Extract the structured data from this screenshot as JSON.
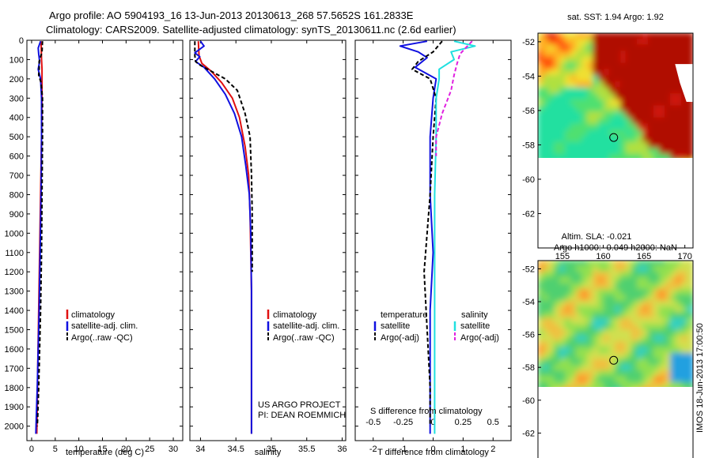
{
  "header": {
    "line1": "Argo profile: AO 5904193_16 13-Jun-2013 20130613_268 57.5652S 161.2833E",
    "line2": "Climatology: CARS2009. Satellite-adjusted climatology: synTS_20130611.nc (2.6d earlier)"
  },
  "side_label": "IMOS 18-Jun-2013 17:00:50",
  "colors": {
    "climatology": "#e01010",
    "satellite": "#1010e0",
    "argo": "#000000",
    "sat_salinity": "#20e0e0",
    "argo_salinity": "#e020e0"
  },
  "chart_data": [
    {
      "id": "temperature",
      "type": "line",
      "xlabel": "temperature (deg C)",
      "xlim": [
        -1,
        32
      ],
      "xticks": [
        0,
        5,
        10,
        15,
        20,
        25,
        30
      ],
      "xtick_labels": [
        "0",
        "5",
        "10",
        "15",
        "20",
        "25",
        "30"
      ],
      "ylim": [
        0,
        2075
      ],
      "yticks": [
        0,
        100,
        200,
        300,
        400,
        500,
        600,
        700,
        800,
        900,
        1000,
        1100,
        1200,
        1300,
        1400,
        1500,
        1600,
        1700,
        1800,
        1900,
        2000
      ],
      "legend": [
        "climatology",
        "satellite-adj. clim.",
        "Argo(..raw -QC)"
      ],
      "series": [
        {
          "name": "climatology",
          "color": "#e01010",
          "dash": "",
          "x": [
            2.0,
            2.1,
            2.2,
            2.2,
            2.1,
            1.9,
            1.7,
            1.5,
            1.3,
            1.2,
            1.1
          ],
          "y": [
            5,
            100,
            150,
            300,
            500,
            800,
            1100,
            1400,
            1700,
            1900,
            2040
          ]
        },
        {
          "name": "satellite-adj. clim.",
          "color": "#1010e0",
          "dash": "",
          "x": [
            1.9,
            1.4,
            1.5,
            1.7,
            1.4,
            1.9,
            2.1,
            2.1,
            2.0,
            1.8,
            1.6,
            1.4,
            1.2,
            1.0,
            0.9
          ],
          "y": [
            5,
            40,
            70,
            110,
            150,
            200,
            300,
            500,
            800,
            1100,
            1400,
            1600,
            1800,
            1950,
            2040
          ]
        },
        {
          "name": "Argo(..raw -QC)",
          "color": "#000000",
          "dash": "5,3",
          "x": [
            2.3,
            2.2,
            1.6,
            1.6,
            1.5,
            2.0,
            2.3,
            2.3,
            2.2,
            2.1,
            1.9,
            1.7,
            1.5,
            1.3,
            1.2
          ],
          "y": [
            5,
            60,
            110,
            150,
            180,
            220,
            300,
            500,
            800,
            1100,
            1400,
            1600,
            1800,
            1950,
            2000
          ]
        }
      ]
    },
    {
      "id": "salinity",
      "type": "line",
      "xlabel": "salinity",
      "xlim": [
        33.85,
        36.05
      ],
      "xticks": [
        34,
        34.5,
        35,
        35.5,
        36
      ],
      "xtick_labels": [
        "34",
        "34.5",
        "35",
        "35.5",
        "36"
      ],
      "ylim": [
        0,
        2075
      ],
      "yticks": [
        0,
        100,
        200,
        300,
        400,
        500,
        600,
        700,
        800,
        900,
        1000,
        1100,
        1200,
        1300,
        1400,
        1500,
        1600,
        1700,
        1800,
        1900,
        2000
      ],
      "legend": [
        "climatology",
        "satellite-adj. clim.",
        "Argo(..raw -QC)"
      ],
      "annotations": [
        "US ARGO PROJECT",
        "PI: DEAN ROEMMICH"
      ],
      "series": [
        {
          "name": "climatology",
          "color": "#e01010",
          "dash": "",
          "x": [
            33.97,
            33.98,
            34.02,
            34.15,
            34.3,
            34.45,
            34.55,
            34.63,
            34.68,
            34.7,
            34.71,
            34.72,
            34.72,
            34.72,
            34.72
          ],
          "y": [
            5,
            80,
            120,
            160,
            220,
            300,
            400,
            550,
            700,
            900,
            1100,
            1300,
            1600,
            1900,
            2040
          ]
        },
        {
          "name": "satellite-adj. clim.",
          "color": "#1010e0",
          "dash": "",
          "x": [
            34.0,
            34.05,
            33.92,
            33.99,
            33.93,
            34.05,
            34.2,
            34.35,
            34.48,
            34.58,
            34.64,
            34.69,
            34.71,
            34.72,
            34.72,
            34.72
          ],
          "y": [
            5,
            30,
            65,
            85,
            110,
            140,
            200,
            280,
            380,
            500,
            650,
            800,
            1000,
            1300,
            1600,
            2040
          ]
        },
        {
          "name": "Argo(..raw -QC)",
          "color": "#000000",
          "dash": "5,3",
          "x": [
            33.92,
            33.92,
            33.93,
            34.0,
            34.15,
            34.35,
            34.52,
            34.63,
            34.7,
            34.72,
            34.73,
            34.73,
            34.73
          ],
          "y": [
            5,
            80,
            110,
            130,
            160,
            200,
            260,
            380,
            500,
            700,
            900,
            1100,
            1200
          ]
        }
      ]
    },
    {
      "id": "difference",
      "type": "line",
      "xlabel": "T difference from climatology",
      "xlabel_top": "S difference from climatology",
      "xlim": [
        -2.6,
        2.6
      ],
      "xticks": [
        -2,
        -1,
        0,
        1,
        2
      ],
      "xtick_labels": [
        "-2",
        "-1",
        "0",
        "1",
        "2"
      ],
      "xticks_s": [
        -0.5,
        -0.25,
        0,
        0.25,
        0.5
      ],
      "xtick_labels_s": [
        "-0.5",
        "-0.25",
        "0",
        "0.25",
        "0.5"
      ],
      "ylim": [
        0,
        2075
      ],
      "yticks": [
        0,
        100,
        200,
        300,
        400,
        500,
        600,
        700,
        800,
        900,
        1000,
        1100,
        1200,
        1300,
        1400,
        1500,
        1600,
        1700,
        1800,
        1900,
        2000
      ],
      "legend_groups": [
        {
          "title": "temperature",
          "items": [
            "satellite",
            "Argo(-adj)"
          ]
        },
        {
          "title": "salinity",
          "items": [
            "satellite",
            "Argo(-adj)"
          ]
        }
      ],
      "series": [
        {
          "name": "satellite",
          "group": "temperature",
          "color": "#1010e0",
          "dash": "",
          "x": [
            -0.2,
            -1.1,
            -0.5,
            -0.2,
            -0.6,
            0.1,
            0.0,
            -0.1,
            -0.1,
            0.0,
            -0.1,
            -0.1,
            -0.1
          ],
          "y": [
            5,
            30,
            60,
            90,
            140,
            200,
            300,
            500,
            800,
            1100,
            1400,
            1700,
            2040
          ]
        },
        {
          "name": "Argo(-adj)",
          "group": "temperature",
          "color": "#000000",
          "dash": "5,3",
          "x": [
            0.3,
            0.0,
            -0.5,
            -0.7,
            -0.1,
            0.1,
            0.0,
            -0.1,
            -0.2,
            -0.3,
            -0.2,
            -0.1,
            -0.1
          ],
          "y": [
            5,
            60,
            110,
            150,
            200,
            300,
            500,
            800,
            1000,
            1200,
            1500,
            1800,
            2000
          ]
        },
        {
          "name": "satellite",
          "group": "salinity",
          "color": "#20e0e0",
          "dash": "",
          "x": [
            0.7,
            1.4,
            0.6,
            0.7,
            0.2,
            0.2,
            0.1,
            0.1,
            0.05,
            0.05,
            0.05,
            0.05
          ],
          "y": [
            5,
            30,
            60,
            100,
            150,
            200,
            300,
            500,
            800,
            1200,
            1600,
            2040
          ]
        },
        {
          "name": "Argo(-adj)",
          "group": "salinity",
          "color": "#e020e0",
          "dash": "5,3",
          "x": [
            1.3,
            0.9,
            0.8,
            0.7,
            0.6,
            0.3,
            0.1,
            0.1
          ],
          "y": [
            5,
            70,
            120,
            180,
            260,
            380,
            500,
            600
          ]
        }
      ]
    },
    {
      "id": "sst-map",
      "type": "heatmap",
      "title": "sat. SST: 1.94 Argo: 1.92",
      "xlim": [
        152,
        171
      ],
      "ylim": [
        -64,
        -51.5
      ],
      "xticks": [
        155,
        160,
        165,
        170
      ],
      "xtick_labels": [
        "155",
        "160",
        "165",
        "170"
      ],
      "yticks": [
        -52,
        -54,
        -56,
        -58,
        -60,
        -62
      ],
      "ytick_labels": [
        "-52",
        "-54",
        "-56",
        "-58",
        "-60",
        "-62"
      ],
      "marker": {
        "lon": 161.28,
        "lat": -57.57
      }
    },
    {
      "id": "sla-map",
      "type": "heatmap",
      "title_lines": [
        "Altim. SLA: -0.021",
        "Argo h1000: -0.049 h2000: NaN"
      ],
      "xlim": [
        152,
        171
      ],
      "ylim": [
        -64,
        -51.5
      ],
      "xticks": [
        155,
        160,
        165,
        170
      ],
      "xtick_labels": [
        "155",
        "160",
        "165",
        "170"
      ],
      "yticks": [
        -52,
        -54,
        -56,
        -58,
        -60,
        -62
      ],
      "ytick_labels": [
        "-52",
        "-54",
        "-56",
        "-58",
        "-60",
        "-62"
      ],
      "marker": {
        "lon": 161.28,
        "lat": -57.57
      }
    }
  ]
}
